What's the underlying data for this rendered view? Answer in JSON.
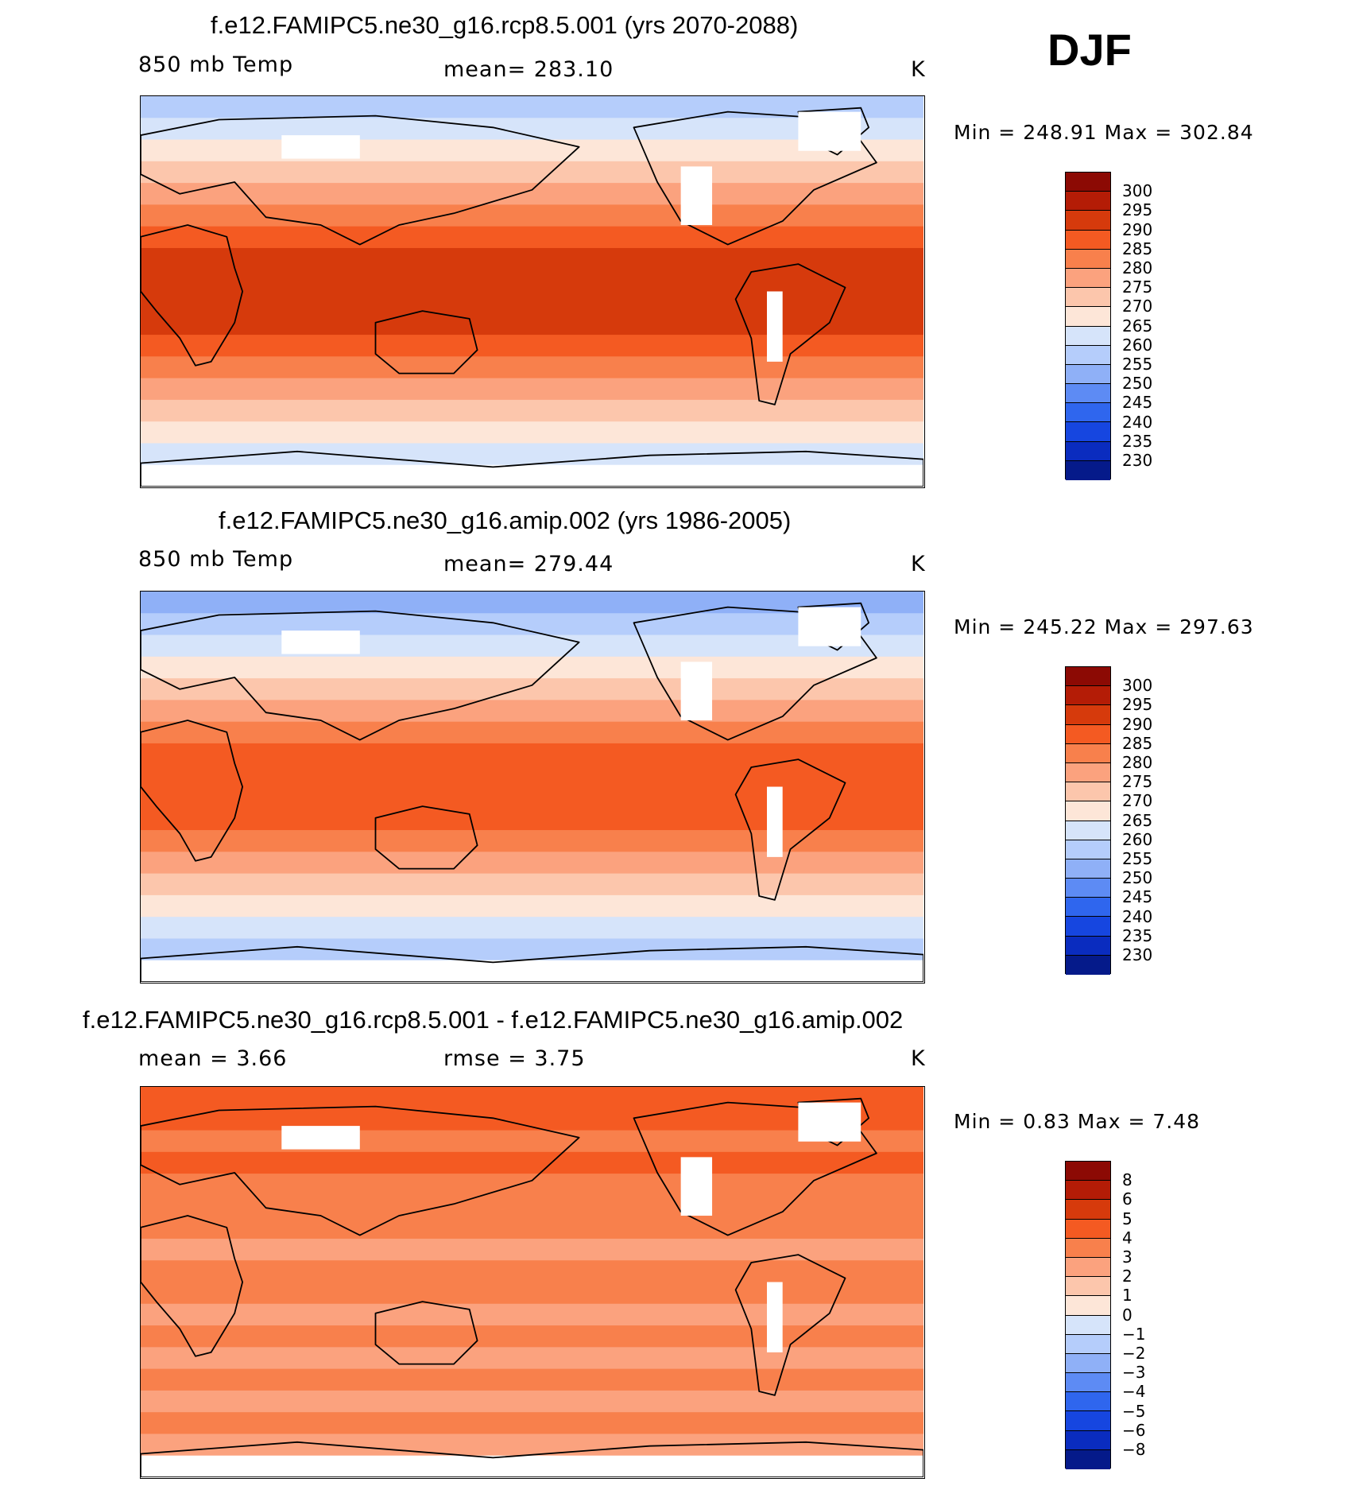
{
  "header": {
    "season": "DJF"
  },
  "chart_data": [
    {
      "type": "heatmap",
      "title": "f.e12.FAMIPC5.ne30_g16.rcp8.5.001 (yrs 2070-2088)",
      "variable": "850 mb Temp",
      "stat_text": "mean= 283.10",
      "units": "K",
      "mean": 283.1,
      "min_max_text": "Min = 248.91 Max = 302.84",
      "min": 248.91,
      "max": 302.84,
      "colorbar_labels": [
        "300",
        "295",
        "290",
        "285",
        "280",
        "275",
        "270",
        "265",
        "260",
        "255",
        "250",
        "245",
        "240",
        "235",
        "230"
      ],
      "colorbar_colors": [
        "#8c0a04",
        "#b41c06",
        "#d63a0c",
        "#f45a22",
        "#f8804c",
        "#fba27e",
        "#fcc6ac",
        "#fde6d8",
        "#d6e4fa",
        "#b5cdfb",
        "#8fb0f7",
        "#5d8bf4",
        "#2f66ee",
        "#1646e0",
        "#0a2cbf",
        "#051a8a"
      ],
      "band_colors": [
        "#b5cdfb",
        "#d6e4fa",
        "#fde6d8",
        "#fcc6ac",
        "#fba27e",
        "#f8804c",
        "#f45a22",
        "#d63a0c",
        "#d63a0c",
        "#d63a0c",
        "#d63a0c",
        "#f45a22",
        "#f8804c",
        "#fba27e",
        "#fcc6ac",
        "#fde6d8",
        "#d6e4fa",
        "#ffffff"
      ]
    },
    {
      "type": "heatmap",
      "title": "f.e12.FAMIPC5.ne30_g16.amip.002 (yrs 1986-2005)",
      "variable": "850 mb Temp",
      "stat_text": "mean= 279.44",
      "units": "K",
      "mean": 279.44,
      "min_max_text": "Min = 245.22 Max = 297.63",
      "min": 245.22,
      "max": 297.63,
      "colorbar_labels": [
        "300",
        "295",
        "290",
        "285",
        "280",
        "275",
        "270",
        "265",
        "260",
        "255",
        "250",
        "245",
        "240",
        "235",
        "230"
      ],
      "colorbar_colors": [
        "#8c0a04",
        "#b41c06",
        "#d63a0c",
        "#f45a22",
        "#f8804c",
        "#fba27e",
        "#fcc6ac",
        "#fde6d8",
        "#d6e4fa",
        "#b5cdfb",
        "#8fb0f7",
        "#5d8bf4",
        "#2f66ee",
        "#1646e0",
        "#0a2cbf",
        "#051a8a"
      ],
      "band_colors": [
        "#8fb0f7",
        "#b5cdfb",
        "#d6e4fa",
        "#fde6d8",
        "#fcc6ac",
        "#fba27e",
        "#f8804c",
        "#f45a22",
        "#f45a22",
        "#f45a22",
        "#f45a22",
        "#f8804c",
        "#fba27e",
        "#fcc6ac",
        "#fde6d8",
        "#d6e4fa",
        "#b5cdfb",
        "#ffffff"
      ]
    },
    {
      "type": "heatmap",
      "title": "f.e12.FAMIPC5.ne30_g16.rcp8.5.001 - f.e12.FAMIPC5.ne30_g16.amip.002",
      "mean_text": "mean = 3.66",
      "rmse_text": "rmse = 3.75",
      "units": "K",
      "mean": 3.66,
      "rmse": 3.75,
      "min_max_text": "Min = 0.83 Max = 7.48",
      "min": 0.83,
      "max": 7.48,
      "colorbar_labels": [
        "8",
        "6",
        "5",
        "4",
        "3",
        "2",
        "1",
        "0",
        "−1",
        "−2",
        "−3",
        "−4",
        "−5",
        "−6",
        "−8"
      ],
      "colorbar_colors": [
        "#8c0a04",
        "#b41c06",
        "#d63a0c",
        "#f45a22",
        "#f8804c",
        "#fba27e",
        "#fcc6ac",
        "#fde6d8",
        "#d6e4fa",
        "#b5cdfb",
        "#8fb0f7",
        "#5d8bf4",
        "#2f66ee",
        "#1646e0",
        "#0a2cbf",
        "#051a8a"
      ],
      "band_colors": [
        "#f45a22",
        "#f45a22",
        "#f8804c",
        "#f45a22",
        "#f8804c",
        "#f8804c",
        "#f8804c",
        "#fba27e",
        "#f8804c",
        "#f8804c",
        "#fba27e",
        "#f8804c",
        "#fba27e",
        "#f8804c",
        "#fba27e",
        "#f8804c",
        "#fba27e",
        "#ffffff"
      ]
    }
  ]
}
